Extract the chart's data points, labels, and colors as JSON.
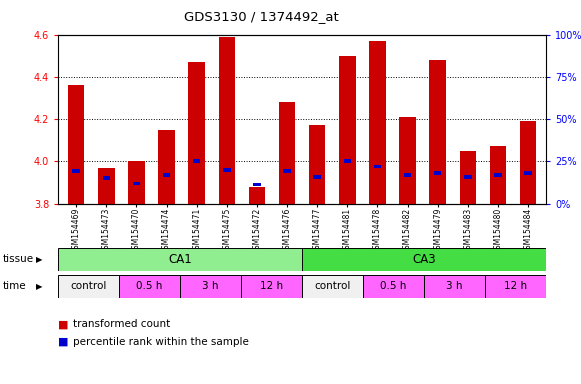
{
  "title": "GDS3130 / 1374492_at",
  "samples": [
    "GSM154469",
    "GSM154473",
    "GSM154470",
    "GSM154474",
    "GSM154471",
    "GSM154475",
    "GSM154472",
    "GSM154476",
    "GSM154477",
    "GSM154481",
    "GSM154478",
    "GSM154482",
    "GSM154479",
    "GSM154483",
    "GSM154480",
    "GSM154484"
  ],
  "red_values": [
    4.36,
    3.97,
    4.0,
    4.15,
    4.47,
    4.59,
    3.88,
    4.28,
    4.17,
    4.5,
    4.57,
    4.21,
    4.48,
    4.05,
    4.07,
    4.19
  ],
  "blue_values": [
    3.955,
    3.92,
    3.895,
    3.935,
    4.0,
    3.96,
    3.89,
    3.955,
    3.925,
    4.0,
    3.975,
    3.935,
    3.945,
    3.925,
    3.935,
    3.945
  ],
  "ymin": 3.8,
  "ymax": 4.6,
  "yticks": [
    3.8,
    4.0,
    4.2,
    4.4,
    4.6
  ],
  "y2ticks": [
    0,
    25,
    50,
    75,
    100
  ],
  "y2labels": [
    "0%",
    "25%",
    "50%",
    "75%",
    "100%"
  ],
  "grid_values": [
    4.0,
    4.2,
    4.4
  ],
  "tissue_labels": [
    {
      "text": "CA1",
      "start": 0,
      "end": 8,
      "color": "#90ee90"
    },
    {
      "text": "CA3",
      "start": 8,
      "end": 16,
      "color": "#44dd44"
    }
  ],
  "time_labels": [
    {
      "text": "control",
      "start": 0,
      "end": 2,
      "color": "#f0f0f0"
    },
    {
      "text": "0.5 h",
      "start": 2,
      "end": 4,
      "color": "#ff66ff"
    },
    {
      "text": "3 h",
      "start": 4,
      "end": 6,
      "color": "#ff66ff"
    },
    {
      "text": "12 h",
      "start": 6,
      "end": 8,
      "color": "#ff66ff"
    },
    {
      "text": "control",
      "start": 8,
      "end": 10,
      "color": "#f0f0f0"
    },
    {
      "text": "0.5 h",
      "start": 10,
      "end": 12,
      "color": "#ff66ff"
    },
    {
      "text": "3 h",
      "start": 12,
      "end": 14,
      "color": "#ff66ff"
    },
    {
      "text": "12 h",
      "start": 14,
      "end": 16,
      "color": "#ff66ff"
    }
  ],
  "bar_color": "#cc0000",
  "blue_color": "#0000cc",
  "bar_width": 0.55,
  "bg_color": "#ffffff",
  "legend_red": "transformed count",
  "legend_blue": "percentile rank within the sample"
}
